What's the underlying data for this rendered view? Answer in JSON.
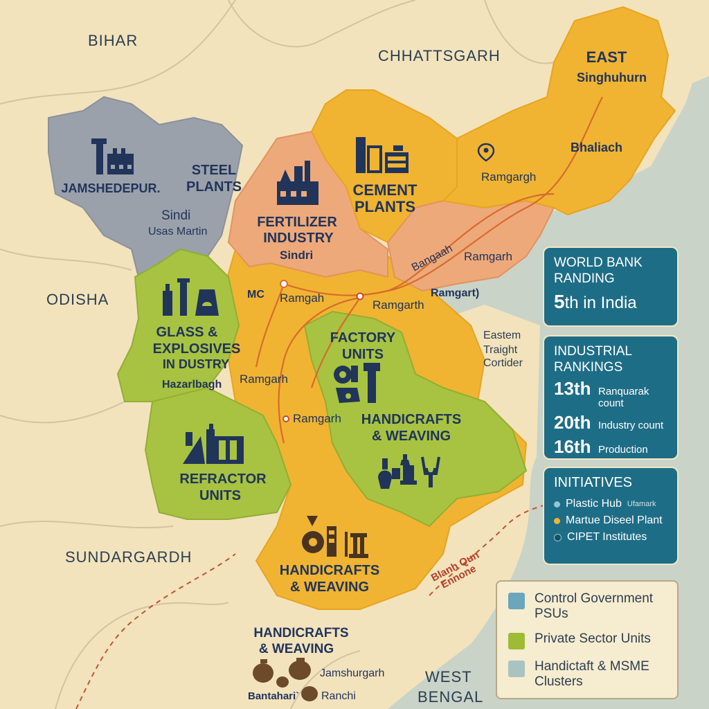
{
  "neighbors": {
    "bihar": "BIHAR",
    "chhattisgarh": "CHHATTSGARH",
    "odisha": "ODISHA",
    "sundargarh": "SUNDARGARDH",
    "west_bengal_1": "WEST",
    "west_bengal_2": "BENGAL",
    "corridor_1": "Eastem",
    "corridor_2": "Traight",
    "corridor_3": "Cortider"
  },
  "regions": {
    "jamshedpur": {
      "city": "JAMSHEDEPUR.",
      "line1": "STEEL",
      "line2": "PLANTS",
      "sub1": "Sindi",
      "sub2": "Usas Martin"
    },
    "fertilizer": {
      "line1": "FERTILIZER",
      "line2": "INDUSTRY",
      "sub": "Sindri"
    },
    "cement": {
      "line1": "CEMENT",
      "line2": "PLANTS"
    },
    "east": {
      "line1": "EAST",
      "line2": "Singhuhurn",
      "place1": "Bhaliach",
      "place2": "Ramgargh"
    },
    "glass": {
      "line1": "GLASS &",
      "line2": "EXPLOSIVES",
      "line3": "IN DUSTRY",
      "sub": "Hazarlbagh"
    },
    "factory": {
      "line1": "FACTORY",
      "line2": "UNITS"
    },
    "handicrafts_east": {
      "line1": "HANDICRAFTS",
      "line2": "& WEAVING"
    },
    "refractor": {
      "line1": "REFRACTOR",
      "line2": "UNITS"
    },
    "handicrafts_south": {
      "line1": "HANDICRAFTS",
      "line2": "& WEAVING"
    },
    "handicrafts_outside": {
      "line1": "HANDICRAFTS",
      "line2": "& WEAVING",
      "place1": "Jamshurgarh",
      "place2": "Bantahari`",
      "place3": "Ranchi"
    }
  },
  "places": {
    "mc": "MC",
    "ramgah": "Ramgah",
    "ramgarth": "Ramgarth",
    "ramgart": "Ramgart)",
    "bangaah": "Bangaah",
    "ramgarh_east": "Ramgarh",
    "ramgarh_west": "Ramgarh",
    "ramgarh_center": "Ramgarh",
    "border_1": "Blanh Qun",
    "border_2": "Ennone"
  },
  "panels": {
    "world_bank": {
      "title1": "WORLD BANK",
      "title2": "RANDING",
      "rank_num": "5",
      "rank_suffix": "th in India"
    },
    "industrial": {
      "title1": "INDUSTRIAL",
      "title2": "RANKINGS",
      "items": [
        {
          "rank": "13th",
          "label": "Ranquarak count"
        },
        {
          "rank": "20th",
          "label": "Industry count"
        },
        {
          "rank": "16th",
          "label": "Production"
        }
      ]
    },
    "initiatives": {
      "title": "INITIATIVES",
      "items": [
        {
          "label": "Plastic Hub",
          "extra": "Ufamark"
        },
        {
          "label": "Martue Diseel Plant",
          "extra": ""
        },
        {
          "label": "CIPET Institutes",
          "extra": ""
        }
      ]
    }
  },
  "legend": {
    "items": [
      {
        "line1": "Control Government",
        "line2": "PSUs",
        "color": "#6aa7ba"
      },
      {
        "line1": "Private Sector Units",
        "line2": "",
        "color": "#9dbb35"
      },
      {
        "line1": "Handictaft & MSME",
        "line2": "Clusters",
        "color": "#a9c3c0"
      }
    ]
  },
  "colors": {
    "background": "#f2e3bd",
    "sea": "#c9d3c8",
    "orange": "#f0b432",
    "salmon": "#eea97a",
    "green": "#a7c341",
    "grey": "#9aa1ab",
    "panel": "#1e6d86",
    "icon_dark": "#21345a"
  }
}
